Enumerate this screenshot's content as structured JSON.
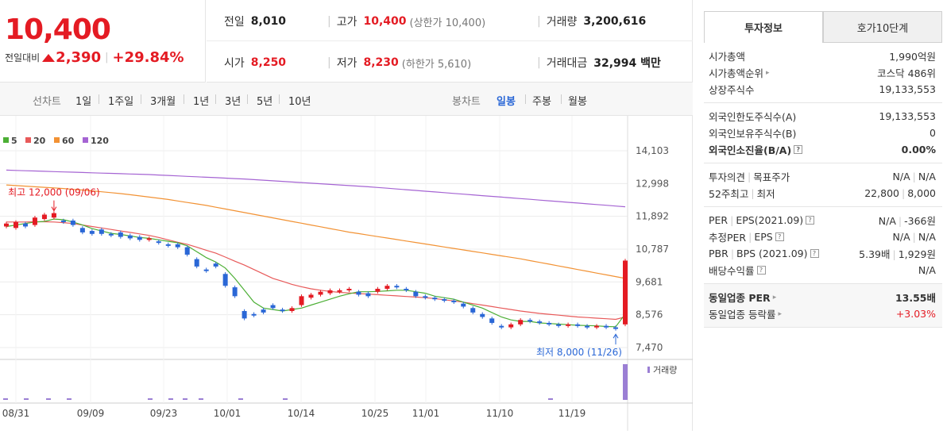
{
  "price": {
    "current": "10,400",
    "diff_label": "전일대비",
    "diff_value": "2,390",
    "diff_percent": "+29.84%"
  },
  "quote": {
    "prev_label": "전일",
    "prev_value": "8,010",
    "high_label": "고가",
    "high_value": "10,400",
    "high_sub": "(상한가 10,400)",
    "volume_label": "거래량",
    "volume_value": "3,200,616",
    "open_label": "시가",
    "open_value": "8,250",
    "low_label": "저가",
    "low_value": "8,230",
    "low_sub": "(하한가 5,610)",
    "amount_label": "거래대금",
    "amount_value": "32,994 백만"
  },
  "periods": {
    "line_label": "선차트",
    "line_items": [
      "1일",
      "1주일",
      "3개월",
      "1년",
      "3년",
      "5년",
      "10년"
    ],
    "candle_label": "봉차트",
    "candle_items": [
      "일봉",
      "주봉",
      "월봉"
    ],
    "candle_active": "일봉"
  },
  "chart_data": {
    "type": "candlestick",
    "y_ticks": [
      "14,103",
      "12,998",
      "11,892",
      "10,787",
      "9,681",
      "8,576",
      "7,470"
    ],
    "ylim": [
      7470,
      14103
    ],
    "x_ticks": [
      "08/31",
      "09/09",
      "09/23",
      "10/01",
      "10/14",
      "10/25",
      "11/01",
      "11/10",
      "11/19"
    ],
    "legend": [
      {
        "name": "5",
        "color": "#4caf35"
      },
      {
        "name": "20",
        "color": "#e85a5a"
      },
      {
        "name": "60",
        "color": "#f29234"
      },
      {
        "name": "120",
        "color": "#a564d3"
      }
    ],
    "annotations": {
      "high_text": "최고 12,000 (09/06)",
      "low_text": "최저 8,000 (11/26)"
    },
    "volume_label": "거래량",
    "candles": [
      {
        "o": 11550,
        "c": 11650
      },
      {
        "o": 11500,
        "c": 11700
      },
      {
        "o": 11650,
        "c": 11550
      },
      {
        "o": 11600,
        "c": 11850
      },
      {
        "o": 11800,
        "c": 11950
      },
      {
        "o": 11850,
        "c": 12000
      },
      {
        "o": 11750,
        "c": 11700
      },
      {
        "o": 11750,
        "c": 11600
      },
      {
        "o": 11500,
        "c": 11350
      },
      {
        "o": 11400,
        "c": 11300
      },
      {
        "o": 11450,
        "c": 11300
      },
      {
        "o": 11300,
        "c": 11250
      },
      {
        "o": 11350,
        "c": 11200
      },
      {
        "o": 11250,
        "c": 11150
      },
      {
        "o": 11200,
        "c": 11100
      },
      {
        "o": 11100,
        "c": 11150
      },
      {
        "o": 11050,
        "c": 11000
      },
      {
        "o": 10950,
        "c": 10900
      },
      {
        "o": 10950,
        "c": 10850
      },
      {
        "o": 10850,
        "c": 10600
      },
      {
        "o": 10450,
        "c": 10200
      },
      {
        "o": 10100,
        "c": 10050
      },
      {
        "o": 10300,
        "c": 10200
      },
      {
        "o": 9950,
        "c": 9550
      },
      {
        "o": 9500,
        "c": 9200
      },
      {
        "o": 8700,
        "c": 8450
      },
      {
        "o": 8600,
        "c": 8550
      },
      {
        "o": 8750,
        "c": 8650
      },
      {
        "o": 8900,
        "c": 8800
      },
      {
        "o": 8750,
        "c": 8700
      },
      {
        "o": 8700,
        "c": 8800
      },
      {
        "o": 8900,
        "c": 9200
      },
      {
        "o": 9150,
        "c": 9250
      },
      {
        "o": 9250,
        "c": 9350
      },
      {
        "o": 9300,
        "c": 9400
      },
      {
        "o": 9350,
        "c": 9400
      },
      {
        "o": 9400,
        "c": 9450
      },
      {
        "o": 9350,
        "c": 9250
      },
      {
        "o": 9300,
        "c": 9200
      },
      {
        "o": 9350,
        "c": 9450
      },
      {
        "o": 9450,
        "c": 9550
      },
      {
        "o": 9550,
        "c": 9500
      },
      {
        "o": 9450,
        "c": 9400
      },
      {
        "o": 9350,
        "c": 9200
      },
      {
        "o": 9200,
        "c": 9150
      },
      {
        "o": 9150,
        "c": 9100
      },
      {
        "o": 9100,
        "c": 9050
      },
      {
        "o": 9050,
        "c": 9000
      },
      {
        "o": 8950,
        "c": 8850
      },
      {
        "o": 8800,
        "c": 8650
      },
      {
        "o": 8600,
        "c": 8500
      },
      {
        "o": 8450,
        "c": 8300
      },
      {
        "o": 8200,
        "c": 8150
      },
      {
        "o": 8150,
        "c": 8250
      },
      {
        "o": 8250,
        "c": 8400
      },
      {
        "o": 8400,
        "c": 8350
      },
      {
        "o": 8350,
        "c": 8300
      },
      {
        "o": 8300,
        "c": 8250
      },
      {
        "o": 8250,
        "c": 8200
      },
      {
        "o": 8200,
        "c": 8250
      },
      {
        "o": 8250,
        "c": 8200
      },
      {
        "o": 8200,
        "c": 8150
      },
      {
        "o": 8150,
        "c": 8200
      },
      {
        "o": 8200,
        "c": 8150
      },
      {
        "o": 8150,
        "c": 8100
      },
      {
        "o": 8250,
        "c": 10400
      }
    ],
    "ma5": [
      11550,
      11600,
      11650,
      11700,
      11720,
      11800,
      11780,
      11700,
      11600,
      11480,
      11400,
      11320,
      11280,
      11230,
      11180,
      11150,
      11100,
      11050,
      11000,
      10900,
      10700,
      10500,
      10350,
      10150,
      9800,
      9400,
      9000,
      8800,
      8750,
      8700,
      8750,
      8800,
      8900,
      9000,
      9100,
      9200,
      9280,
      9350,
      9350,
      9360,
      9380,
      9400,
      9400,
      9350,
      9300,
      9200,
      9150,
      9100,
      9000,
      8900,
      8800,
      8650,
      8500,
      8400,
      8350,
      8350,
      8300,
      8280,
      8260,
      8240,
      8220,
      8210,
      8200,
      8180,
      8170,
      8600
    ],
    "ma20": [
      11700,
      11700,
      11700,
      11710,
      11710,
      11700,
      11680,
      11650,
      11600,
      11550,
      11500,
      11450,
      11400,
      11350,
      11300,
      11250,
      11180,
      11100,
      11020,
      10950,
      10850,
      10750,
      10650,
      10520,
      10380,
      10250,
      10100,
      9950,
      9800,
      9700,
      9600,
      9520,
      9450,
      9400,
      9360,
      9330,
      9310,
      9290,
      9270,
      9250,
      9230,
      9210,
      9190,
      9170,
      9150,
      9120,
      9080,
      9040,
      9000,
      8950,
      8900,
      8850,
      8800,
      8750,
      8700,
      8660,
      8620,
      8590,
      8560,
      8530,
      8500,
      8480,
      8460,
      8440,
      8420,
      8500
    ],
    "ma60": [
      12950,
      12930,
      12910,
      12890,
      12870,
      12850,
      12830,
      12800,
      12780,
      12750,
      12720,
      12690,
      12660,
      12620,
      12580,
      12540,
      12500,
      12460,
      12410,
      12360,
      12310,
      12260,
      12200,
      12140,
      12080,
      12020,
      11960,
      11900,
      11840,
      11780,
      11720,
      11660,
      11600,
      11540,
      11480,
      11420,
      11360,
      11310,
      11260,
      11210,
      11160,
      11110,
      11060,
      11010,
      10960,
      10910,
      10860,
      10810,
      10760,
      10710,
      10660,
      10610,
      10560,
      10510,
      10460,
      10400,
      10340,
      10280,
      10220,
      10160,
      10100,
      10040,
      9980,
      9920,
      9860,
      9800
    ],
    "ma120": [
      13450,
      13440,
      13430,
      13420,
      13410,
      13400,
      13390,
      13380,
      13370,
      13360,
      13350,
      13340,
      13330,
      13320,
      13310,
      13300,
      13285,
      13270,
      13255,
      13240,
      13225,
      13210,
      13195,
      13180,
      13165,
      13150,
      13130,
      13110,
      13090,
      13070,
      13050,
      13030,
      13010,
      12990,
      12970,
      12950,
      12930,
      12910,
      12890,
      12865,
      12840,
      12815,
      12790,
      12765,
      12740,
      12715,
      12690,
      12665,
      12640,
      12615,
      12590,
      12565,
      12540,
      12515,
      12490,
      12465,
      12440,
      12415,
      12390,
      12365,
      12340,
      12315,
      12290,
      12265,
      12240,
      12215
    ]
  },
  "tabs": [
    "투자정보",
    "호가10단계"
  ],
  "info": {
    "sec1": [
      {
        "k": "시가총액",
        "v": "1,990억원"
      },
      {
        "k": "시가총액순위",
        "v": "코스닥 486위"
      },
      {
        "k": "상장주식수",
        "v": "19,133,553"
      }
    ],
    "sec2": [
      {
        "k": "외국인한도주식수(A)",
        "v": "19,133,553"
      },
      {
        "k": "외국인보유주식수(B)",
        "v": "0"
      },
      {
        "k": "외국인소진율(B/A)",
        "v": "0.00%"
      }
    ],
    "sec3": [
      {
        "k1": "투자의견",
        "k2": "목표주가",
        "v1": "N/A",
        "v2": "N/A"
      },
      {
        "k1": "52주최고",
        "k2": "최저",
        "v1": "22,800",
        "v2": "8,000"
      }
    ],
    "sec4": [
      {
        "k1": "PER",
        "k2": "EPS(2021.09)",
        "v1": "N/A",
        "v2": "-366원"
      },
      {
        "k1": "추정PER",
        "k2": "EPS",
        "v1": "N/A",
        "v2": "N/A"
      },
      {
        "k1": "PBR",
        "k2": "BPS (2021.09)",
        "v1": "5.39배",
        "v2": "1,929원"
      },
      {
        "k1": "배당수익률",
        "k2": "",
        "v1": "N/A",
        "v2": ""
      }
    ],
    "sec5": [
      {
        "k": "동일업종 PER",
        "v": "13.55배"
      },
      {
        "k": "동일업종 등락률",
        "v": "+3.03%"
      }
    ]
  }
}
